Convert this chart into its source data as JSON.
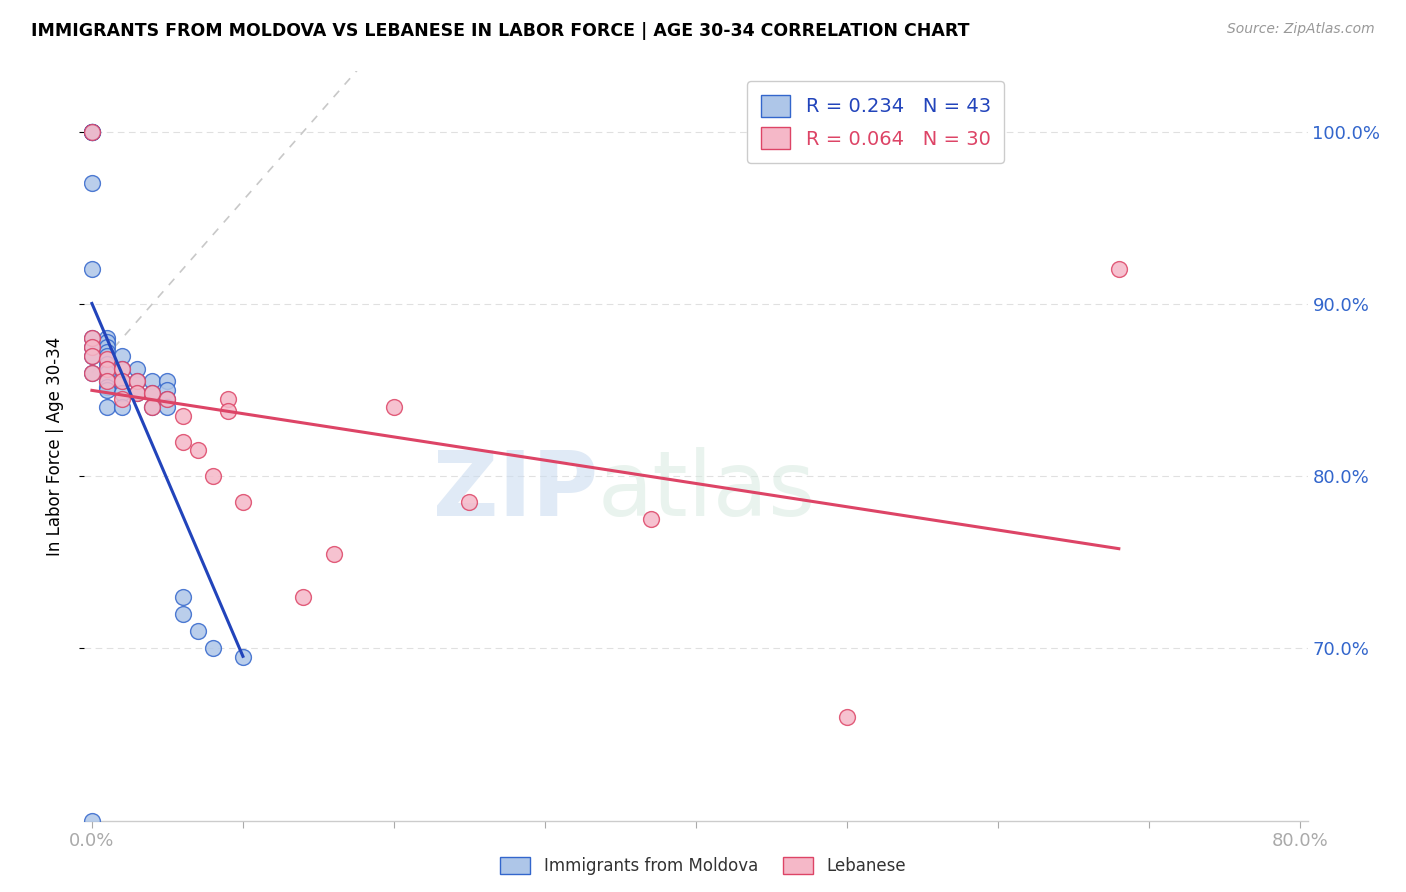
{
  "title": "IMMIGRANTS FROM MOLDOVA VS LEBANESE IN LABOR FORCE | AGE 30-34 CORRELATION CHART",
  "source": "Source: ZipAtlas.com",
  "ylabel": "In Labor Force | Age 30-34",
  "ytick_labels": [
    "100.0%",
    "90.0%",
    "80.0%",
    "70.0%"
  ],
  "ytick_values": [
    1.0,
    0.9,
    0.8,
    0.7
  ],
  "xlim": [
    -0.005,
    0.805
  ],
  "ylim": [
    0.6,
    1.035
  ],
  "moldova_fill_color": "#aec6e8",
  "moldova_edge_color": "#3366cc",
  "lebanese_fill_color": "#f5b8c8",
  "lebanese_edge_color": "#dd4466",
  "moldova_line_color": "#2244bb",
  "lebanese_line_color": "#dd4466",
  "diagonal_color": "#c8c8c8",
  "legend_moldova_R": "R = 0.234",
  "legend_moldova_N": "N = 43",
  "legend_lebanese_R": "R = 0.064",
  "legend_lebanese_N": "N = 30",
  "moldova_x": [
    0.0,
    0.0,
    0.0,
    0.0,
    0.0,
    0.0,
    0.0,
    0.0,
    0.0,
    0.0,
    0.0,
    0.01,
    0.01,
    0.01,
    0.01,
    0.01,
    0.01,
    0.01,
    0.01,
    0.01,
    0.01,
    0.01,
    0.01,
    0.02,
    0.02,
    0.02,
    0.02,
    0.02,
    0.03,
    0.03,
    0.03,
    0.04,
    0.04,
    0.04,
    0.05,
    0.05,
    0.05,
    0.05,
    0.06,
    0.06,
    0.07,
    0.08,
    0.1
  ],
  "moldova_y": [
    1.0,
    1.0,
    1.0,
    1.0,
    0.97,
    0.92,
    0.88,
    0.875,
    0.87,
    0.86,
    0.6,
    0.88,
    0.878,
    0.875,
    0.872,
    0.87,
    0.865,
    0.862,
    0.86,
    0.855,
    0.852,
    0.85,
    0.84,
    0.87,
    0.862,
    0.855,
    0.848,
    0.84,
    0.862,
    0.855,
    0.848,
    0.855,
    0.848,
    0.84,
    0.855,
    0.85,
    0.845,
    0.84,
    0.73,
    0.72,
    0.71,
    0.7,
    0.695
  ],
  "lebanese_x": [
    0.0,
    0.0,
    0.0,
    0.0,
    0.0,
    0.01,
    0.01,
    0.01,
    0.02,
    0.02,
    0.02,
    0.03,
    0.03,
    0.04,
    0.04,
    0.05,
    0.06,
    0.06,
    0.07,
    0.08,
    0.09,
    0.09,
    0.1,
    0.14,
    0.16,
    0.2,
    0.25,
    0.37,
    0.5,
    0.68
  ],
  "lebanese_y": [
    1.0,
    0.88,
    0.875,
    0.87,
    0.86,
    0.868,
    0.862,
    0.855,
    0.862,
    0.855,
    0.845,
    0.855,
    0.848,
    0.848,
    0.84,
    0.845,
    0.835,
    0.82,
    0.815,
    0.8,
    0.845,
    0.838,
    0.785,
    0.73,
    0.755,
    0.84,
    0.785,
    0.775,
    0.66,
    0.92
  ],
  "watermark_zip": "ZIP",
  "watermark_atlas": "atlas",
  "background_color": "#ffffff",
  "grid_color": "#e0e0e0",
  "marker_size": 130
}
